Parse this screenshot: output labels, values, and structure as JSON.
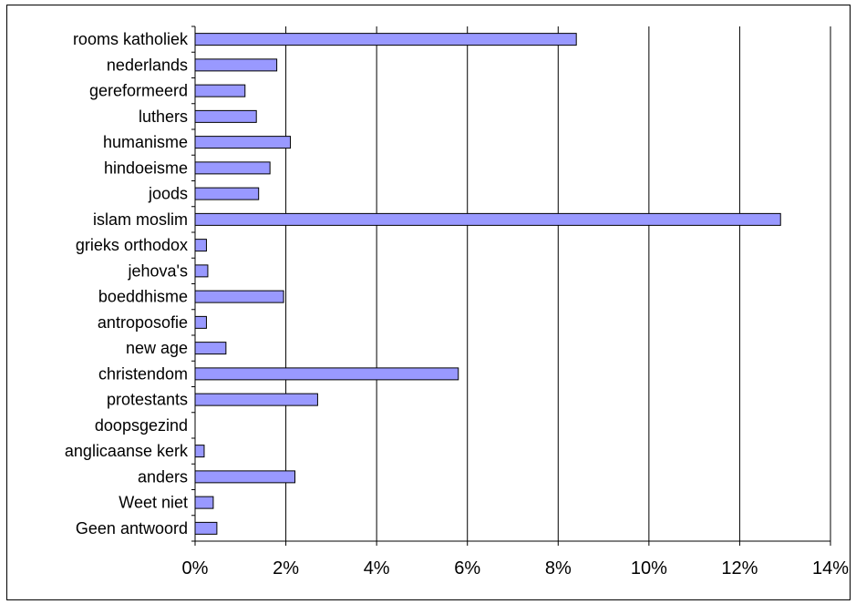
{
  "chart_data": {
    "type": "bar",
    "orientation": "horizontal",
    "categories": [
      "rooms katholiek",
      "nederlands",
      "gereformeerd",
      "luthers",
      "humanisme",
      "hindoeisme",
      "joods",
      "islam moslim",
      "grieks orthodox",
      "jehova's",
      "boeddhisme",
      "antroposofie",
      "new age",
      "christendom",
      "protestants",
      "doopsgezind",
      "anglicaanse kerk",
      "anders",
      "Weet niet",
      "Geen antwoord"
    ],
    "values": [
      8.4,
      1.8,
      1.1,
      1.35,
      2.1,
      1.65,
      1.4,
      12.9,
      0.25,
      0.28,
      1.95,
      0.25,
      0.68,
      5.8,
      2.7,
      0.0,
      0.2,
      2.2,
      0.4,
      0.48
    ],
    "xlim": [
      0,
      14
    ],
    "ticks": [
      0,
      2,
      4,
      6,
      8,
      10,
      12,
      14
    ],
    "tick_labels": [
      "0%",
      "2%",
      "4%",
      "6%",
      "8%",
      "10%",
      "12%",
      "14%"
    ],
    "grid": "vertical",
    "legend": "none",
    "title": "",
    "xlabel": "",
    "ylabel": "",
    "colors": {
      "bar_fill": "#9999ff",
      "bar_stroke": "#000000",
      "grid": "#000000",
      "frame": "#000000"
    }
  }
}
